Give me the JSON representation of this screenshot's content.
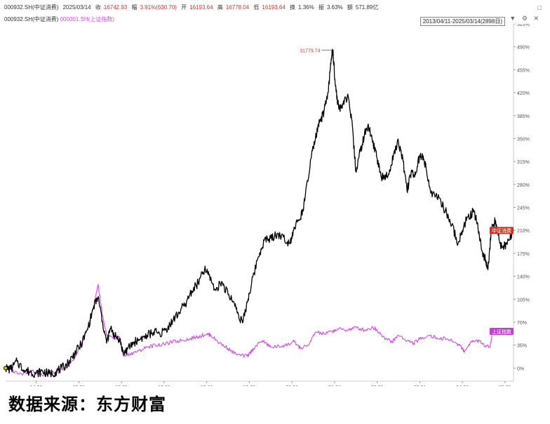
{
  "header": {
    "code": "000932.SH(中证消费)",
    "date": "2025/03/14",
    "close_label": "收",
    "close_value": "16742.93",
    "change_label": "幅",
    "change_value": "3.91%(630.70)",
    "open_label": "开",
    "open_value": "16193.64",
    "high_label": "高",
    "high_value": "16778.04",
    "low_label": "低",
    "low_value": "16193.64",
    "turnover_label": "换",
    "turnover_value": "1.36%",
    "amplitude_label": "振",
    "amplitude_value": "3.63%",
    "amount_label": "额",
    "amount_value": "571.89亿"
  },
  "legend": {
    "main": "000932.SH(中证消费)",
    "ref": "000001.SH(上证指数)"
  },
  "range_label": "2013/04/11-2025/03/14(2898日)",
  "icons": [
    "dropdown-icon",
    "settings-icon",
    "close-icon"
  ],
  "source": "数据来源：东方财富",
  "colors": {
    "main": "#000000",
    "ref": "#d24be0",
    "up": "#d0312d",
    "tag_main": "#c0392b",
    "tag_ref": "#c040d0"
  },
  "chart_data": {
    "type": "line",
    "x_unit": "year (decimal)",
    "y_unit": "cumulative change %",
    "ylim": [
      -20,
      525
    ],
    "xlim": [
      2013.28,
      2025.2
    ],
    "y_ticks": [
      "525%",
      "490%",
      "455%",
      "420%",
      "385%",
      "350%",
      "315%",
      "280%",
      "245%",
      "210%",
      "175%",
      "140%",
      "105%",
      "70%",
      "35%",
      "0%"
    ],
    "y_tick_values": [
      525,
      490,
      455,
      420,
      385,
      350,
      315,
      280,
      245,
      210,
      175,
      140,
      105,
      70,
      35,
      0
    ],
    "x_ticks": [
      "14-01",
      "15-01",
      "16-01",
      "17-01",
      "18-01",
      "19-01",
      "20-01",
      "21-01",
      "22-01",
      "23-01",
      "24-01",
      "25-01"
    ],
    "x_tick_values": [
      2014.0,
      2015.0,
      2016.0,
      2017.0,
      2018.0,
      2019.0,
      2020.0,
      2021.0,
      2022.0,
      2023.0,
      2024.0,
      2025.0
    ],
    "annotation": {
      "text": "31779.74",
      "x": 2020.96,
      "y": 484
    },
    "series": [
      {
        "name": "中证消费",
        "end_label": "中证消费",
        "points": [
          [
            2013.28,
            0
          ],
          [
            2013.4,
            -2
          ],
          [
            2013.55,
            10
          ],
          [
            2013.7,
            -3
          ],
          [
            2013.85,
            -6
          ],
          [
            2014.0,
            -8
          ],
          [
            2014.15,
            -5
          ],
          [
            2014.3,
            -9
          ],
          [
            2014.45,
            -6
          ],
          [
            2014.6,
            0
          ],
          [
            2014.75,
            8
          ],
          [
            2014.9,
            22
          ],
          [
            2015.05,
            36
          ],
          [
            2015.2,
            58
          ],
          [
            2015.35,
            95
          ],
          [
            2015.45,
            108
          ],
          [
            2015.55,
            72
          ],
          [
            2015.65,
            38
          ],
          [
            2015.75,
            62
          ],
          [
            2015.85,
            48
          ],
          [
            2015.95,
            45
          ],
          [
            2016.05,
            22
          ],
          [
            2016.15,
            30
          ],
          [
            2016.3,
            40
          ],
          [
            2016.45,
            44
          ],
          [
            2016.6,
            50
          ],
          [
            2016.75,
            55
          ],
          [
            2016.9,
            52
          ],
          [
            2017.05,
            60
          ],
          [
            2017.2,
            72
          ],
          [
            2017.35,
            85
          ],
          [
            2017.5,
            98
          ],
          [
            2017.65,
            118
          ],
          [
            2017.8,
            130
          ],
          [
            2017.95,
            150
          ],
          [
            2018.05,
            142
          ],
          [
            2018.2,
            120
          ],
          [
            2018.35,
            132
          ],
          [
            2018.5,
            112
          ],
          [
            2018.65,
            98
          ],
          [
            2018.75,
            80
          ],
          [
            2018.85,
            70
          ],
          [
            2018.95,
            100
          ],
          [
            2019.05,
            128
          ],
          [
            2019.2,
            168
          ],
          [
            2019.35,
            195
          ],
          [
            2019.5,
            198
          ],
          [
            2019.65,
            205
          ],
          [
            2019.8,
            200
          ],
          [
            2019.95,
            190
          ],
          [
            2020.05,
            215
          ],
          [
            2020.2,
            228
          ],
          [
            2020.3,
            255
          ],
          [
            2020.45,
            320
          ],
          [
            2020.55,
            350
          ],
          [
            2020.65,
            375
          ],
          [
            2020.75,
            390
          ],
          [
            2020.85,
            420
          ],
          [
            2020.92,
            470
          ],
          [
            2020.96,
            484
          ],
          [
            2021.02,
            430
          ],
          [
            2021.1,
            395
          ],
          [
            2021.2,
            402
          ],
          [
            2021.3,
            415
          ],
          [
            2021.4,
            380
          ],
          [
            2021.5,
            300
          ],
          [
            2021.6,
            330
          ],
          [
            2021.7,
            355
          ],
          [
            2021.78,
            370
          ],
          [
            2021.88,
            350
          ],
          [
            2022.0,
            320
          ],
          [
            2022.1,
            290
          ],
          [
            2022.2,
            295
          ],
          [
            2022.3,
            300
          ],
          [
            2022.4,
            330
          ],
          [
            2022.5,
            345
          ],
          [
            2022.6,
            320
          ],
          [
            2022.7,
            270
          ],
          [
            2022.8,
            300
          ],
          [
            2022.9,
            295
          ],
          [
            2023.0,
            325
          ],
          [
            2023.1,
            318
          ],
          [
            2023.2,
            285
          ],
          [
            2023.3,
            265
          ],
          [
            2023.45,
            260
          ],
          [
            2023.6,
            240
          ],
          [
            2023.75,
            218
          ],
          [
            2023.9,
            190
          ],
          [
            2024.0,
            210
          ],
          [
            2024.12,
            230
          ],
          [
            2024.25,
            238
          ],
          [
            2024.35,
            222
          ],
          [
            2024.45,
            180
          ],
          [
            2024.55,
            165
          ],
          [
            2024.6,
            150
          ],
          [
            2024.68,
            212
          ],
          [
            2024.78,
            225
          ],
          [
            2024.88,
            190
          ],
          [
            2024.98,
            185
          ],
          [
            2025.08,
            195
          ],
          [
            2025.2,
            210
          ]
        ]
      },
      {
        "name": "上证指数",
        "end_label": "上证指数",
        "points": [
          [
            2013.28,
            0
          ],
          [
            2013.5,
            -6
          ],
          [
            2013.7,
            -8
          ],
          [
            2013.9,
            -4
          ],
          [
            2014.1,
            -10
          ],
          [
            2014.3,
            -8
          ],
          [
            2014.5,
            -6
          ],
          [
            2014.7,
            0
          ],
          [
            2014.9,
            15
          ],
          [
            2015.05,
            35
          ],
          [
            2015.2,
            60
          ],
          [
            2015.35,
            95
          ],
          [
            2015.45,
            128
          ],
          [
            2015.55,
            80
          ],
          [
            2015.65,
            50
          ],
          [
            2015.8,
            45
          ],
          [
            2015.95,
            48
          ],
          [
            2016.05,
            18
          ],
          [
            2016.2,
            22
          ],
          [
            2016.4,
            26
          ],
          [
            2016.6,
            32
          ],
          [
            2016.8,
            35
          ],
          [
            2017.0,
            36
          ],
          [
            2017.2,
            40
          ],
          [
            2017.4,
            42
          ],
          [
            2017.6,
            45
          ],
          [
            2017.8,
            48
          ],
          [
            2018.0,
            52
          ],
          [
            2018.1,
            50
          ],
          [
            2018.3,
            38
          ],
          [
            2018.5,
            30
          ],
          [
            2018.7,
            20
          ],
          [
            2018.95,
            18
          ],
          [
            2019.1,
            30
          ],
          [
            2019.3,
            42
          ],
          [
            2019.5,
            32
          ],
          [
            2019.7,
            33
          ],
          [
            2019.9,
            36
          ],
          [
            2020.05,
            40
          ],
          [
            2020.2,
            30
          ],
          [
            2020.4,
            35
          ],
          [
            2020.55,
            55
          ],
          [
            2020.75,
            52
          ],
          [
            2020.95,
            56
          ],
          [
            2021.1,
            60
          ],
          [
            2021.3,
            58
          ],
          [
            2021.5,
            62
          ],
          [
            2021.7,
            58
          ],
          [
            2021.9,
            62
          ],
          [
            2022.0,
            58
          ],
          [
            2022.2,
            45
          ],
          [
            2022.35,
            40
          ],
          [
            2022.5,
            50
          ],
          [
            2022.7,
            42
          ],
          [
            2022.85,
            38
          ],
          [
            2023.0,
            44
          ],
          [
            2023.2,
            50
          ],
          [
            2023.4,
            46
          ],
          [
            2023.6,
            45
          ],
          [
            2023.8,
            40
          ],
          [
            2023.95,
            34
          ],
          [
            2024.05,
            25
          ],
          [
            2024.2,
            40
          ],
          [
            2024.35,
            42
          ],
          [
            2024.5,
            36
          ],
          [
            2024.65,
            32
          ],
          [
            2024.72,
            60
          ],
          [
            2024.85,
            52
          ],
          [
            2025.0,
            54
          ],
          [
            2025.2,
            56
          ]
        ]
      }
    ]
  }
}
